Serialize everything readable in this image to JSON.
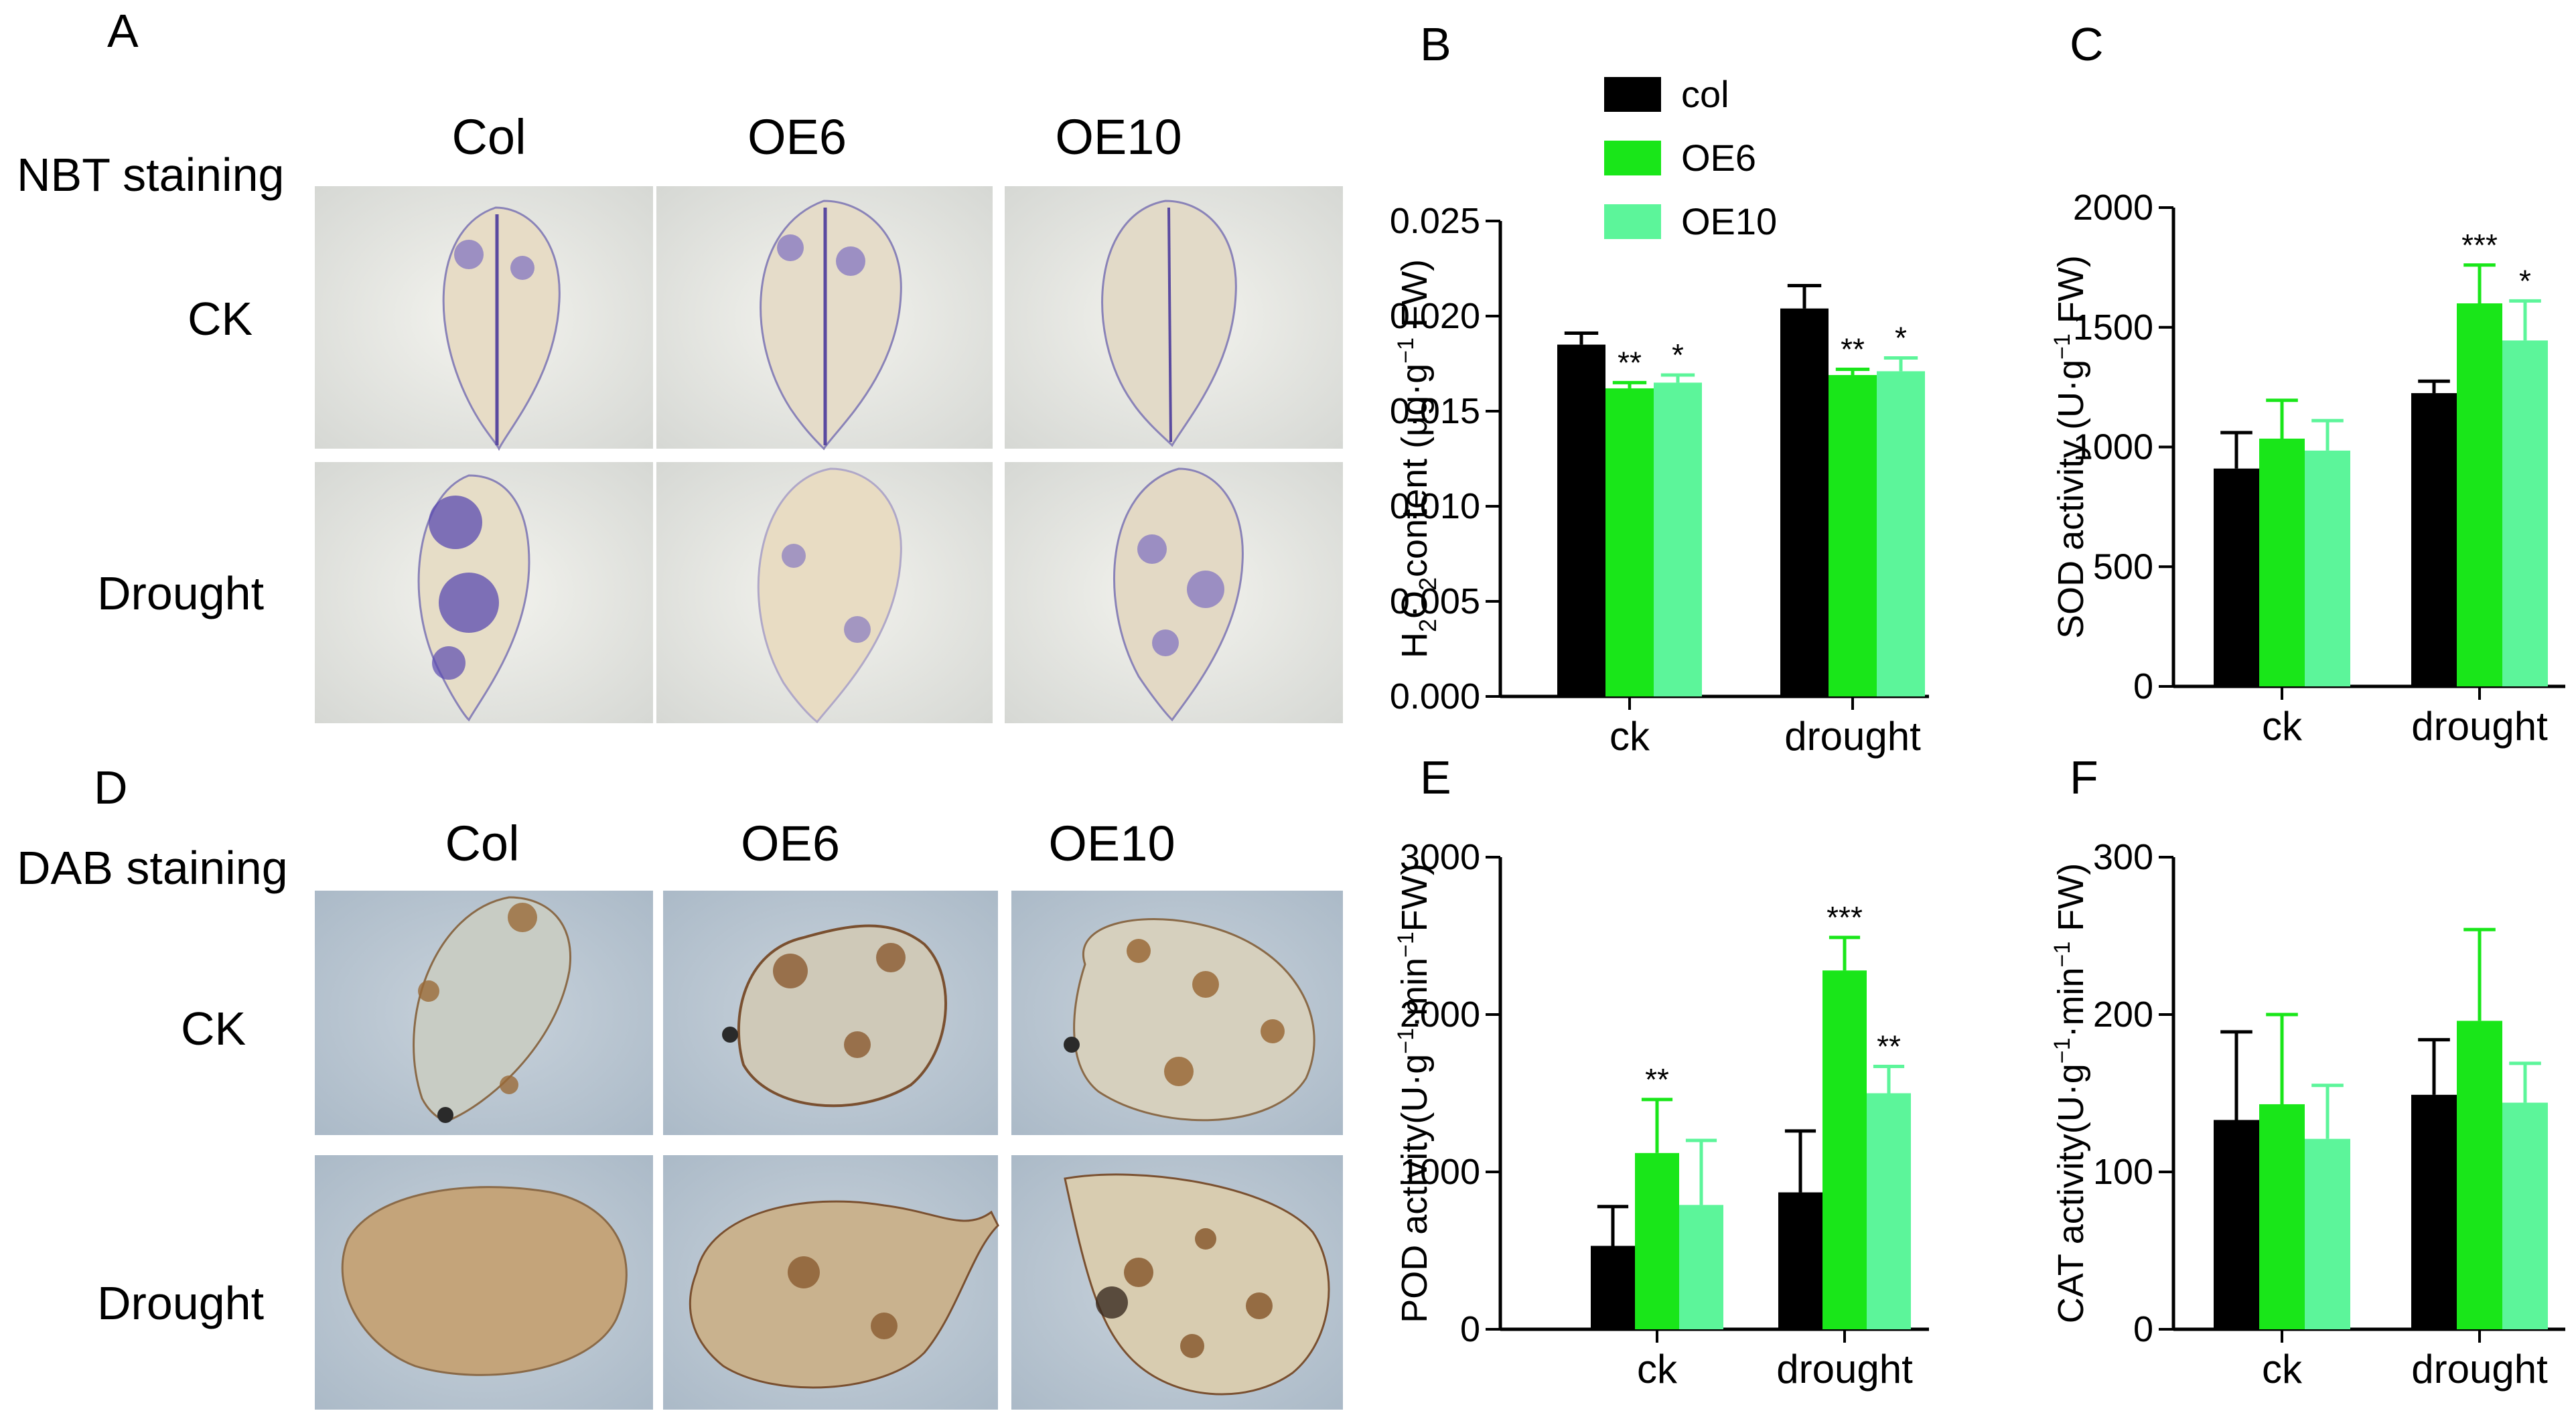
{
  "panels": {
    "A": {
      "letter": "A",
      "title": "NBT staining",
      "columns": [
        "Col",
        "OE6",
        "OE10"
      ],
      "rows": [
        "CK",
        "Drought"
      ]
    },
    "D": {
      "letter": "D",
      "title": "DAB staining",
      "columns": [
        "Col",
        "OE6",
        "OE10"
      ],
      "rows": [
        "CK",
        "Drought"
      ]
    }
  },
  "legend": [
    {
      "name": "col",
      "color": "#000000"
    },
    {
      "name": "OE6",
      "color": "#19e619"
    },
    {
      "name": "OE10",
      "color": "#5cf59a"
    }
  ],
  "chart_data": [
    {
      "panel": "B",
      "type": "bar",
      "ylabel_prefix": "H",
      "ylabel_sub1": "2",
      "ylabel_mid": "O",
      "ylabel_sub2": "2",
      "ylabel_rest": "content (μg·g",
      "ylabel_sup": "−1",
      "ylabel_end": " FW)",
      "categories": [
        "ck",
        "drought"
      ],
      "ylim": [
        0,
        0.025
      ],
      "yticks": [
        "0.000",
        "0.005",
        "0.010",
        "0.015",
        "0.020",
        "0.025"
      ],
      "series": [
        {
          "name": "col",
          "values": [
            0.0185,
            0.0204
          ],
          "errors": [
            0.0006,
            0.0012
          ],
          "sig": [
            "",
            ""
          ]
        },
        {
          "name": "OE6",
          "values": [
            0.0162,
            0.0169
          ],
          "errors": [
            0.0003,
            0.0003
          ],
          "sig": [
            "**",
            "**"
          ]
        },
        {
          "name": "OE10",
          "values": [
            0.0165,
            0.0171
          ],
          "errors": [
            0.0004,
            0.0007
          ],
          "sig": [
            "*",
            "*"
          ]
        }
      ]
    },
    {
      "panel": "C",
      "type": "bar",
      "ylabel_rest": "SOD activity (U·g",
      "ylabel_sup": "−1",
      "ylabel_end": " FW)",
      "categories": [
        "ck",
        "drought"
      ],
      "ylim": [
        0,
        2000
      ],
      "yticks": [
        "0",
        "500",
        "1000",
        "1500",
        "2000"
      ],
      "series": [
        {
          "name": "col",
          "values": [
            910,
            1225
          ],
          "errors": [
            150,
            50
          ],
          "sig": [
            "",
            ""
          ]
        },
        {
          "name": "OE6",
          "values": [
            1035,
            1600
          ],
          "errors": [
            160,
            160
          ],
          "sig": [
            "",
            "***"
          ]
        },
        {
          "name": "OE10",
          "values": [
            985,
            1445
          ],
          "errors": [
            125,
            165
          ],
          "sig": [
            "",
            "*"
          ]
        }
      ]
    },
    {
      "panel": "E",
      "type": "bar",
      "ylabel_rest": "POD activity(U·g",
      "ylabel_sup": "−1",
      "ylabel_mid2": "·min",
      "ylabel_sup2": "−1",
      "ylabel_end": "FW)",
      "categories": [
        "ck",
        "drought"
      ],
      "ylim": [
        0,
        3000
      ],
      "yticks": [
        "0",
        "1000",
        "2000",
        "3000"
      ],
      "series": [
        {
          "name": "col",
          "values": [
            530,
            870
          ],
          "errors": [
            250,
            390
          ],
          "sig": [
            "",
            ""
          ]
        },
        {
          "name": "OE6",
          "values": [
            1120,
            2280
          ],
          "errors": [
            340,
            210
          ],
          "sig": [
            "**",
            "***"
          ]
        },
        {
          "name": "OE10",
          "values": [
            790,
            1500
          ],
          "errors": [
            410,
            170
          ],
          "sig": [
            "",
            "**"
          ]
        }
      ]
    },
    {
      "panel": "F",
      "type": "bar",
      "ylabel_rest": "CAT activity(U·g",
      "ylabel_sup": "−1",
      "ylabel_mid2": "·min",
      "ylabel_sup2": "−1",
      "ylabel_end": " FW)",
      "categories": [
        "ck",
        "drought"
      ],
      "ylim": [
        0,
        300
      ],
      "yticks": [
        "0",
        "100",
        "200",
        "300"
      ],
      "series": [
        {
          "name": "col",
          "values": [
            133,
            149
          ],
          "errors": [
            56,
            35
          ],
          "sig": [
            "",
            ""
          ]
        },
        {
          "name": "OE6",
          "values": [
            143,
            196
          ],
          "errors": [
            57,
            58
          ],
          "sig": [
            "",
            ""
          ]
        },
        {
          "name": "OE10",
          "values": [
            121,
            144
          ],
          "errors": [
            34,
            25
          ],
          "sig": [
            "",
            ""
          ]
        }
      ]
    }
  ]
}
